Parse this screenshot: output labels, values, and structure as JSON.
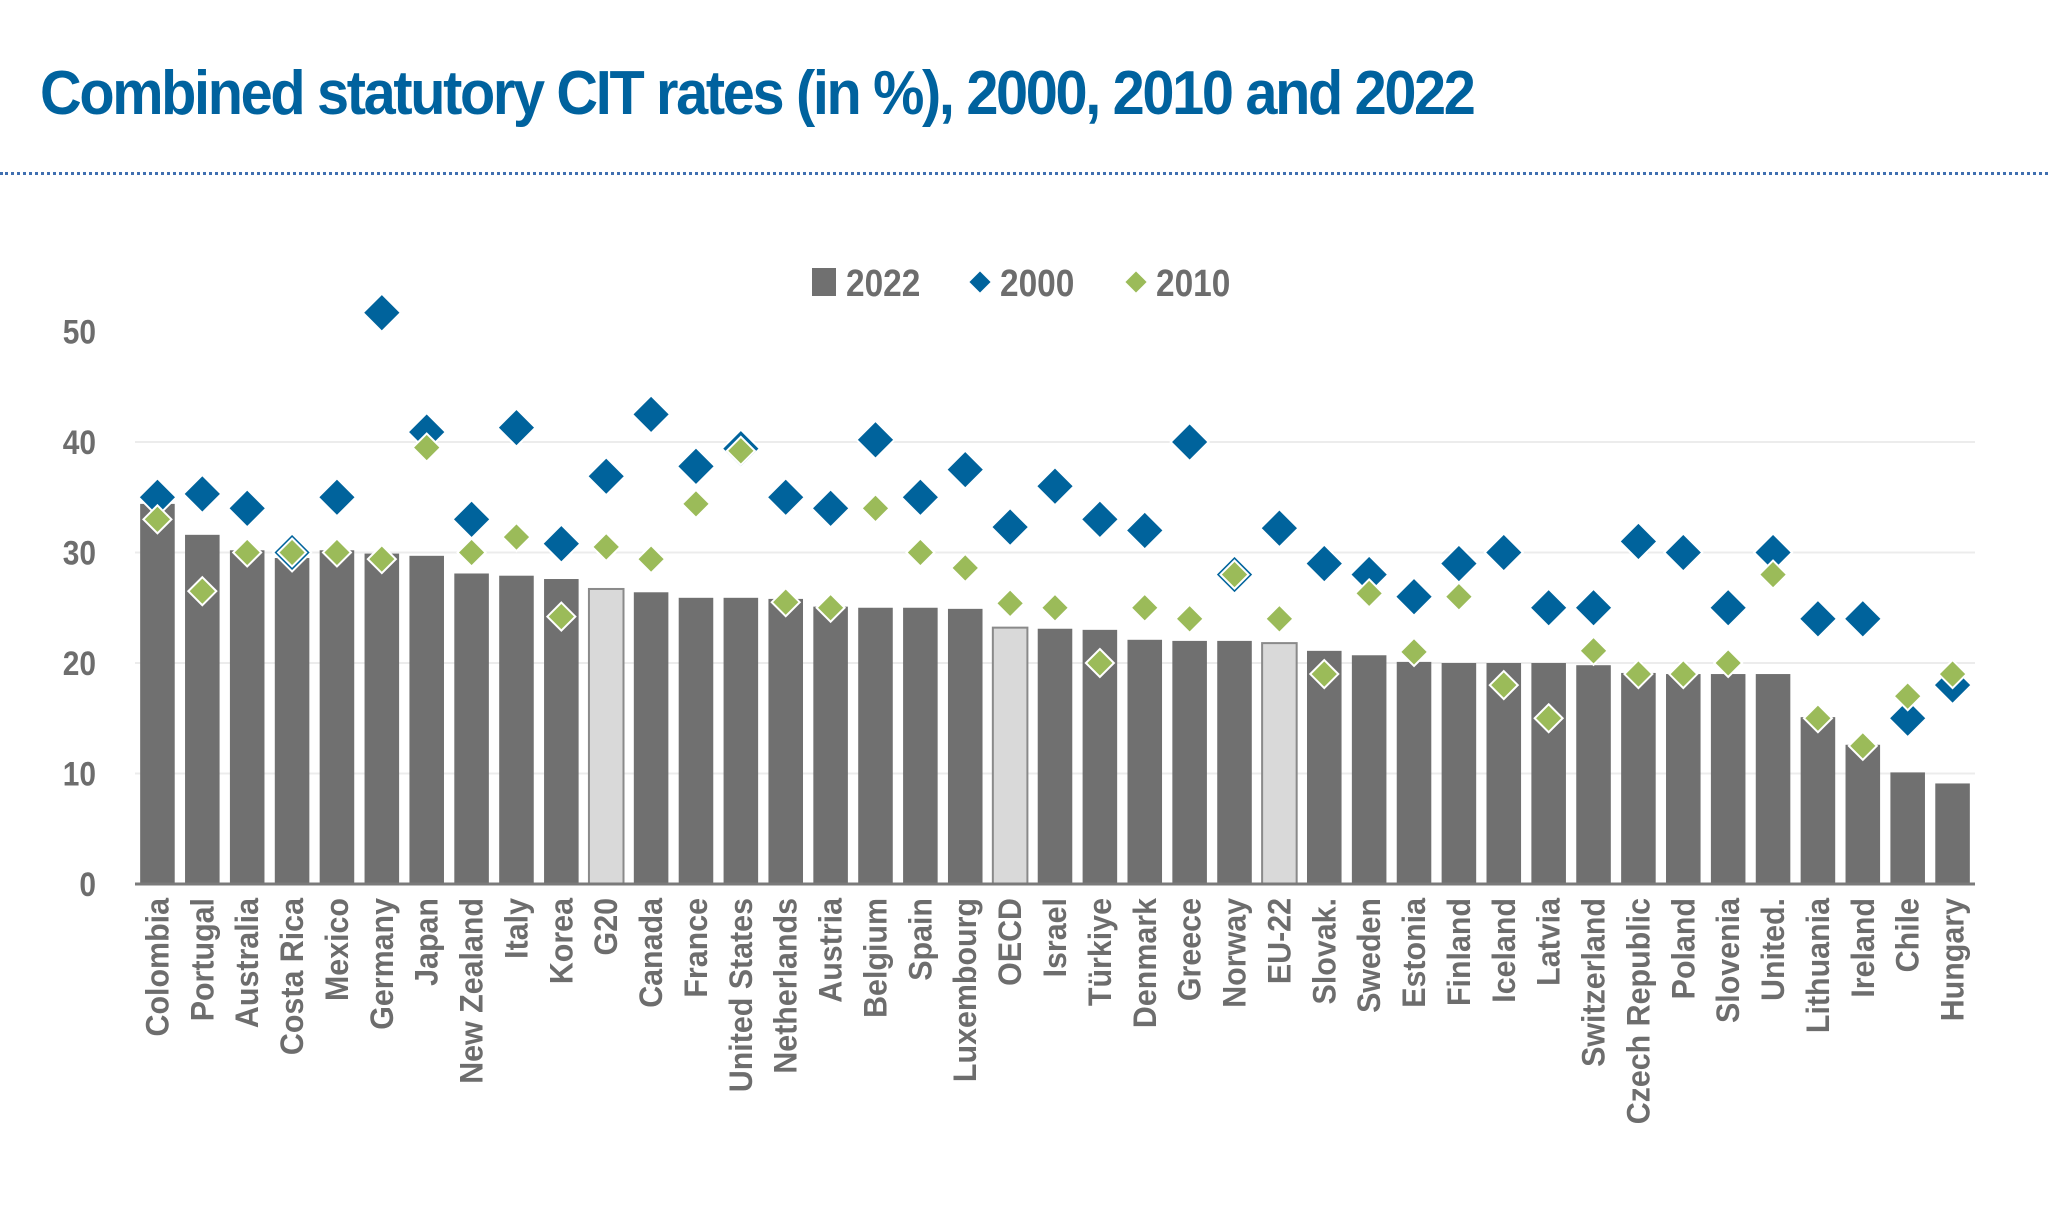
{
  "page": {
    "title": "Combined statutory CIT rates (in %), 2000, 2010 and 2022"
  },
  "colors": {
    "title": "#00629e",
    "bar_country": "#707070",
    "bar_aggregate": "#d9d9d9",
    "series_2000": "#00639c",
    "series_2010": "#9bbb59",
    "text": "#6d6d6d",
    "gridline": "#ececec"
  },
  "chart_data": {
    "type": "bar",
    "title": "Combined statutory CIT rates (in %), 2000, 2010 and 2022",
    "xlabel": "",
    "ylabel": "",
    "ylim": [
      0,
      50
    ],
    "yticks": [
      0,
      10,
      20,
      30,
      40,
      50
    ],
    "grid": true,
    "legend_position": "top-center",
    "legend": [
      {
        "label": "2022",
        "marker": "square",
        "series": "2022"
      },
      {
        "label": "2000",
        "marker": "diamond",
        "series": "2000"
      },
      {
        "label": "2010",
        "marker": "diamond",
        "series": "2010"
      }
    ],
    "categories": [
      "Colombia",
      "Portugal",
      "Australia",
      "Costa Rica",
      "Mexico",
      "Germany",
      "Japan",
      "New Zealand",
      "Italy",
      "Korea",
      "G20",
      "Canada",
      "France",
      "United States",
      "Netherlands",
      "Austria",
      "Belgium",
      "Spain",
      "Luxembourg",
      "OECD",
      "Israel",
      "Türkiye",
      "Denmark",
      "Greece",
      "Norway",
      "EU-22",
      "Slovak.",
      "Sweden",
      "Estonia",
      "Finland",
      "Iceland",
      "Latvia",
      "Switzerland",
      "Czech Republic",
      "Poland",
      "Slovenia",
      "United.",
      "Lithuania",
      "Ireland",
      "Chile",
      "Hungary"
    ],
    "aggregates": [
      "G20",
      "OECD",
      "EU-22"
    ],
    "series": [
      {
        "name": "2022",
        "kind": "bar",
        "values": [
          34.4,
          31.6,
          30.2,
          29.5,
          30.2,
          29.9,
          29.7,
          28.1,
          27.9,
          27.6,
          26.7,
          26.4,
          25.9,
          25.9,
          25.8,
          25.1,
          25.0,
          25.0,
          24.9,
          23.2,
          23.1,
          23.0,
          22.1,
          22.0,
          22.0,
          21.8,
          21.1,
          20.7,
          20.1,
          20.0,
          20.0,
          20.0,
          19.8,
          19.1,
          19.0,
          19.0,
          19.0,
          15.1,
          12.6,
          10.1,
          9.1
        ]
      },
      {
        "name": "2000",
        "kind": "marker",
        "values": [
          35.0,
          35.3,
          34.0,
          30.0,
          35.0,
          51.7,
          40.9,
          33.0,
          41.3,
          30.8,
          36.9,
          42.5,
          37.8,
          39.4,
          35.0,
          34.0,
          40.2,
          35.0,
          37.5,
          32.3,
          36.0,
          33.0,
          32.0,
          40.0,
          28.0,
          32.2,
          29.0,
          28.0,
          26.0,
          29.0,
          30.0,
          25.0,
          25.0,
          31.0,
          30.0,
          25.0,
          30.0,
          24.0,
          24.0,
          15.0,
          18.0
        ]
      },
      {
        "name": "2010",
        "kind": "marker",
        "values": [
          33.0,
          26.5,
          30.0,
          30.0,
          30.0,
          29.4,
          39.5,
          30.0,
          31.4,
          24.2,
          30.5,
          29.4,
          34.4,
          39.2,
          25.5,
          25.0,
          34.0,
          30.0,
          28.6,
          25.4,
          25.0,
          20.0,
          25.0,
          24.0,
          28.0,
          24.0,
          19.0,
          26.3,
          21.0,
          26.0,
          18.0,
          15.0,
          21.1,
          19.0,
          19.0,
          20.0,
          28.0,
          15.0,
          12.5,
          17.0,
          19.0
        ]
      }
    ]
  }
}
